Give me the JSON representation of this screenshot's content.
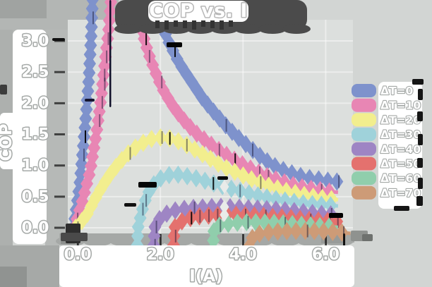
{
  "page": {
    "title": "COP vs. I"
  },
  "chart_data": {
    "type": "line",
    "title": "COP vs. I",
    "xlabel": "I(A)",
    "ylabel": "COP",
    "xlim": [
      -0.24,
      6.66
    ],
    "ylim": [
      -0.09,
      3.34
    ],
    "grid": true,
    "legend_position": "right",
    "marker": "diamond",
    "xticks": {
      "values": [
        0,
        2,
        4,
        6
      ],
      "labels": [
        "0.0",
        "2.0",
        "4.0",
        "6.0"
      ]
    },
    "yticks": {
      "values": [
        0,
        0.5,
        1,
        1.5,
        2,
        2.5,
        3
      ],
      "labels": [
        "0.0",
        "0.5",
        "1.0",
        "1.5",
        "2.0",
        "2.5",
        "3.0"
      ]
    },
    "series": [
      {
        "label": "ΔT=0",
        "color": "#7e92cc",
        "points": [
          [
            -0.1,
            0.0
          ],
          [
            0.05,
            0.7
          ],
          [
            0.12,
            1.2
          ],
          [
            0.2,
            1.8
          ],
          [
            0.27,
            2.4
          ],
          [
            0.32,
            3.0
          ],
          [
            0.37,
            3.8
          ],
          [
            2.0,
            3.8
          ],
          [
            2.05,
            3.3
          ],
          [
            2.15,
            3.05
          ],
          [
            2.3,
            2.85
          ],
          [
            2.45,
            2.65
          ],
          [
            2.6,
            2.5
          ],
          [
            2.8,
            2.3
          ],
          [
            3.0,
            2.1
          ],
          [
            3.2,
            1.93
          ],
          [
            3.4,
            1.78
          ],
          [
            3.6,
            1.63
          ],
          [
            3.8,
            1.5
          ],
          [
            4.0,
            1.38
          ],
          [
            4.2,
            1.27
          ],
          [
            4.4,
            1.16
          ],
          [
            4.6,
            1.06
          ],
          [
            4.8,
            0.98
          ],
          [
            5.0,
            0.92
          ],
          [
            5.2,
            0.87
          ],
          [
            5.4,
            0.83
          ],
          [
            5.6,
            0.8
          ],
          [
            5.8,
            0.78
          ],
          [
            6.0,
            0.76
          ],
          [
            6.3,
            0.74
          ]
        ]
      },
      {
        "label": "ΔT=10",
        "color": "#e886b4",
        "points": [
          [
            -0.08,
            0.0
          ],
          [
            0.1,
            0.4
          ],
          [
            0.3,
            0.9
          ],
          [
            0.45,
            1.5
          ],
          [
            0.55,
            2.0
          ],
          [
            0.65,
            2.6
          ],
          [
            0.75,
            3.2
          ],
          [
            0.83,
            3.85
          ],
          [
            1.46,
            3.85
          ],
          [
            1.5,
            3.3
          ],
          [
            1.6,
            3.05
          ],
          [
            1.7,
            2.82
          ],
          [
            1.82,
            2.6
          ],
          [
            1.95,
            2.38
          ],
          [
            2.1,
            2.17
          ],
          [
            2.3,
            1.96
          ],
          [
            2.5,
            1.78
          ],
          [
            2.7,
            1.63
          ],
          [
            2.9,
            1.5
          ],
          [
            3.1,
            1.4
          ],
          [
            3.3,
            1.3
          ],
          [
            3.5,
            1.21
          ],
          [
            3.7,
            1.13
          ],
          [
            3.9,
            1.05
          ],
          [
            4.1,
            0.98
          ],
          [
            4.3,
            0.91
          ],
          [
            4.5,
            0.85
          ],
          [
            4.7,
            0.8
          ],
          [
            4.9,
            0.75
          ],
          [
            5.1,
            0.71
          ],
          [
            5.3,
            0.67
          ],
          [
            5.5,
            0.64
          ],
          [
            5.7,
            0.62
          ],
          [
            5.9,
            0.6
          ],
          [
            6.1,
            0.58
          ],
          [
            6.3,
            0.57
          ]
        ]
      },
      {
        "label": "ΔT=20",
        "color": "#f2ee8e",
        "points": [
          [
            -0.05,
            0.0
          ],
          [
            0.2,
            0.18
          ],
          [
            0.4,
            0.44
          ],
          [
            0.6,
            0.67
          ],
          [
            0.8,
            0.87
          ],
          [
            1.0,
            1.04
          ],
          [
            1.2,
            1.18
          ],
          [
            1.4,
            1.29
          ],
          [
            1.6,
            1.37
          ],
          [
            1.8,
            1.43
          ],
          [
            2.0,
            1.45
          ],
          [
            2.2,
            1.44
          ],
          [
            2.4,
            1.4
          ],
          [
            2.6,
            1.34
          ],
          [
            2.8,
            1.27
          ],
          [
            3.0,
            1.19
          ],
          [
            3.2,
            1.11
          ],
          [
            3.4,
            1.03
          ],
          [
            3.6,
            0.96
          ],
          [
            3.8,
            0.9
          ],
          [
            4.0,
            0.84
          ],
          [
            4.2,
            0.78
          ],
          [
            4.4,
            0.73
          ],
          [
            4.6,
            0.68
          ],
          [
            4.8,
            0.64
          ],
          [
            5.0,
            0.6
          ],
          [
            5.2,
            0.57
          ],
          [
            5.4,
            0.54
          ],
          [
            5.6,
            0.51
          ],
          [
            5.8,
            0.49
          ],
          [
            6.0,
            0.47
          ],
          [
            6.3,
            0.45
          ]
        ]
      },
      {
        "label": "ΔT=30",
        "color": "#9fd2da",
        "points": [
          [
            1.44,
            -0.28
          ],
          [
            1.46,
            0.0
          ],
          [
            1.52,
            0.18
          ],
          [
            1.6,
            0.38
          ],
          [
            1.7,
            0.55
          ],
          [
            1.8,
            0.67
          ],
          [
            1.95,
            0.77
          ],
          [
            2.1,
            0.83
          ],
          [
            2.3,
            0.86
          ],
          [
            2.5,
            0.85
          ],
          [
            2.7,
            0.82
          ],
          [
            2.9,
            0.79
          ],
          [
            3.1,
            0.75
          ],
          [
            3.3,
            0.71
          ],
          [
            3.5,
            0.67
          ],
          [
            3.7,
            0.63
          ],
          [
            3.9,
            0.6
          ],
          [
            4.1,
            0.56
          ],
          [
            4.3,
            0.53
          ],
          [
            4.5,
            0.5
          ],
          [
            4.7,
            0.47
          ],
          [
            4.9,
            0.45
          ],
          [
            5.1,
            0.43
          ],
          [
            5.3,
            0.41
          ],
          [
            5.5,
            0.39
          ],
          [
            5.7,
            0.38
          ],
          [
            5.9,
            0.37
          ],
          [
            6.1,
            0.36
          ],
          [
            6.3,
            0.35
          ]
        ]
      },
      {
        "label": "ΔT=40",
        "color": "#9e85c4",
        "points": [
          [
            1.84,
            -0.28
          ],
          [
            1.86,
            0.0
          ],
          [
            1.95,
            0.12
          ],
          [
            2.1,
            0.21
          ],
          [
            2.3,
            0.27
          ],
          [
            2.5,
            0.3
          ],
          [
            2.8,
            0.32
          ],
          [
            3.1,
            0.33
          ],
          [
            3.4,
            0.34
          ],
          [
            3.7,
            0.33
          ],
          [
            4.0,
            0.32
          ],
          [
            4.3,
            0.31
          ],
          [
            4.6,
            0.3
          ],
          [
            4.9,
            0.29
          ],
          [
            5.2,
            0.27
          ],
          [
            5.5,
            0.25
          ],
          [
            5.8,
            0.23
          ],
          [
            6.0,
            0.22
          ],
          [
            6.3,
            0.21
          ]
        ]
      },
      {
        "label": "ΔT=50",
        "color": "#e4716e",
        "points": [
          [
            2.32,
            -0.28
          ],
          [
            2.34,
            0.0
          ],
          [
            2.45,
            0.08
          ],
          [
            2.6,
            0.13
          ],
          [
            2.8,
            0.17
          ],
          [
            3.0,
            0.19
          ],
          [
            3.3,
            0.2
          ],
          [
            3.6,
            0.21
          ],
          [
            3.9,
            0.21
          ],
          [
            4.2,
            0.2
          ],
          [
            4.5,
            0.19
          ],
          [
            4.8,
            0.17
          ],
          [
            5.1,
            0.16
          ],
          [
            5.4,
            0.14
          ],
          [
            5.7,
            0.12
          ],
          [
            6.0,
            0.11
          ],
          [
            6.3,
            0.1
          ]
        ]
      },
      {
        "label": "ΔT=60",
        "color": "#90ceac",
        "points": [
          [
            3.27,
            -0.35
          ],
          [
            3.3,
            0.0
          ],
          [
            3.45,
            0.04
          ],
          [
            3.7,
            0.07
          ],
          [
            4.0,
            0.09
          ],
          [
            4.4,
            0.09
          ],
          [
            4.8,
            0.08
          ],
          [
            5.2,
            0.06
          ],
          [
            5.6,
            0.04
          ],
          [
            6.0,
            0.02
          ],
          [
            6.3,
            0.01
          ]
        ]
      },
      {
        "label": "ΔT=70",
        "color": "#cd9b77",
        "points": [
          [
            4.15,
            -0.3
          ],
          [
            4.25,
            -0.12
          ],
          [
            4.5,
            -0.08
          ],
          [
            4.8,
            -0.06
          ],
          [
            5.2,
            -0.05
          ],
          [
            5.6,
            -0.05
          ],
          [
            6.0,
            -0.06
          ],
          [
            6.3,
            -0.07
          ],
          [
            6.6,
            -0.09
          ]
        ]
      }
    ]
  },
  "style_colors": {
    "background": "#d2d5d3",
    "plot_background": "#dcdfdd",
    "title_band": "#4b4b4b",
    "label_fill": "#ffffff",
    "label_outline": "#a5a9a7"
  }
}
